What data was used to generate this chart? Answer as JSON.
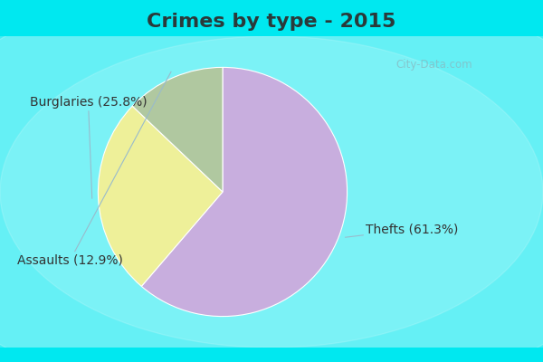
{
  "title": "Crimes by type - 2015",
  "slices": [
    {
      "label": "Thefts (61.3%)",
      "value": 61.3,
      "color": "#c8aede"
    },
    {
      "label": "Burglaries (25.8%)",
      "value": 25.8,
      "color": "#eef099"
    },
    {
      "label": "Assaults (12.9%)",
      "value": 12.9,
      "color": "#b0c8a0"
    }
  ],
  "cyan_color": "#00e8f0",
  "inner_bg": "#c8e8d8",
  "inner_bg_center": "#e8f4ee",
  "title_fontsize": 16,
  "label_fontsize": 10,
  "watermark": "City-Data.com",
  "title_color": "#2a3a3a"
}
